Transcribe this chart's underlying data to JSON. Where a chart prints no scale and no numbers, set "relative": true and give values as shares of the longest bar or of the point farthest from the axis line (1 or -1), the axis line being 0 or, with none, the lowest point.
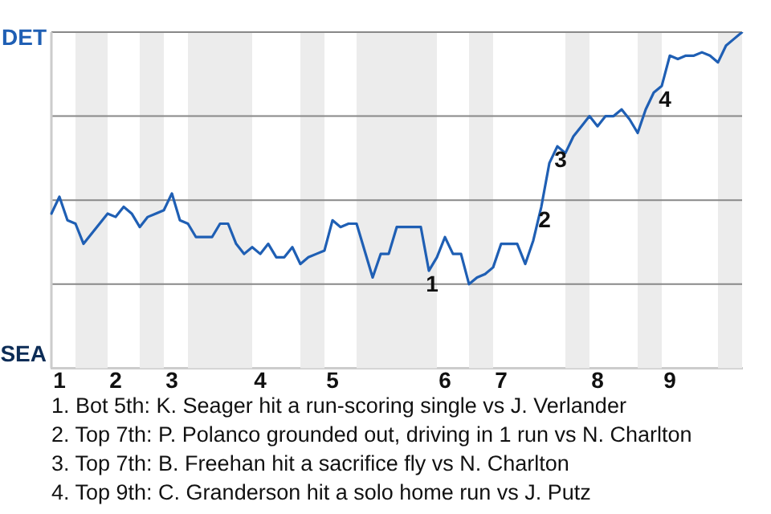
{
  "chart_data": {
    "type": "line",
    "relative": true,
    "categories": [
      null,
      "1",
      null,
      null,
      null,
      null,
      null,
      null,
      "2",
      null,
      null,
      null,
      null,
      null,
      null,
      "3",
      null,
      null,
      null,
      null,
      null,
      null,
      null,
      null,
      null,
      null,
      "4",
      null,
      null,
      null,
      null,
      null,
      null,
      null,
      null,
      "5",
      null,
      null,
      null,
      null,
      null,
      null,
      null,
      null,
      null,
      null,
      null,
      null,
      null,
      "6",
      null,
      null,
      null,
      null,
      null,
      null,
      "7",
      null,
      null,
      null,
      null,
      null,
      null,
      null,
      null,
      null,
      null,
      null,
      "8",
      null,
      null,
      null,
      null,
      null,
      null,
      null,
      null,
      "9",
      null,
      null,
      null,
      null,
      null,
      null,
      null,
      null,
      null
    ],
    "series": [
      {
        "color": "#1f5fb4",
        "values": [
          0.46,
          0.51,
          0.44,
          0.43,
          0.37,
          0.4,
          0.43,
          0.46,
          0.45,
          0.48,
          0.46,
          0.42,
          0.45,
          0.46,
          0.47,
          0.52,
          0.44,
          0.43,
          0.39,
          0.39,
          0.39,
          0.43,
          0.43,
          0.37,
          0.34,
          0.36,
          0.34,
          0.37,
          0.33,
          0.33,
          0.36,
          0.31,
          0.33,
          0.34,
          0.35,
          0.44,
          0.42,
          0.43,
          0.43,
          0.35,
          0.27,
          0.34,
          0.34,
          0.42,
          0.42,
          0.42,
          0.42,
          0.29,
          0.33,
          0.39,
          0.34,
          0.34,
          0.25,
          0.27,
          0.28,
          0.3,
          0.37,
          0.37,
          0.37,
          0.31,
          0.38,
          0.48,
          0.61,
          0.66,
          0.64,
          0.69,
          0.72,
          0.75,
          0.72,
          0.75,
          0.75,
          0.77,
          0.74,
          0.7,
          0.77,
          0.82,
          0.84,
          0.93,
          0.92,
          0.93,
          0.93,
          0.94,
          0.93,
          0.91,
          0.96,
          0.98,
          1
        ]
      }
    ],
    "marker": "none",
    "ref_lines": [
      {
        "axis": "y",
        "value": 0.25,
        "color": "#888888"
      },
      {
        "axis": "y",
        "value": 0.5,
        "color": "#888888"
      },
      {
        "axis": "y",
        "value": 0.75,
        "color": "#888888"
      },
      {
        "axis": "y",
        "value": 1,
        "color": "#888888"
      }
    ],
    "annotations": [
      "DET",
      "SEA",
      {
        "text": "1",
        "y": 0.29
      },
      {
        "text": "2",
        "y": 0.48
      },
      {
        "text": "3",
        "y": 0.66
      },
      {
        "text": "4",
        "y": 0.84
      },
      "1. Bot 5th: K. Seager hit a run-scoring single vs J. Verlander",
      "2. Top 7th: P. Polanco grounded out, driving in 1 run vs N. Charlton",
      "3. Top 7th: B. Freehan hit a sacrifice fly vs N. Charlton",
      "4. Top 9th: C. Granderson hit a solo home run vs J. Putz"
    ]
  }
}
